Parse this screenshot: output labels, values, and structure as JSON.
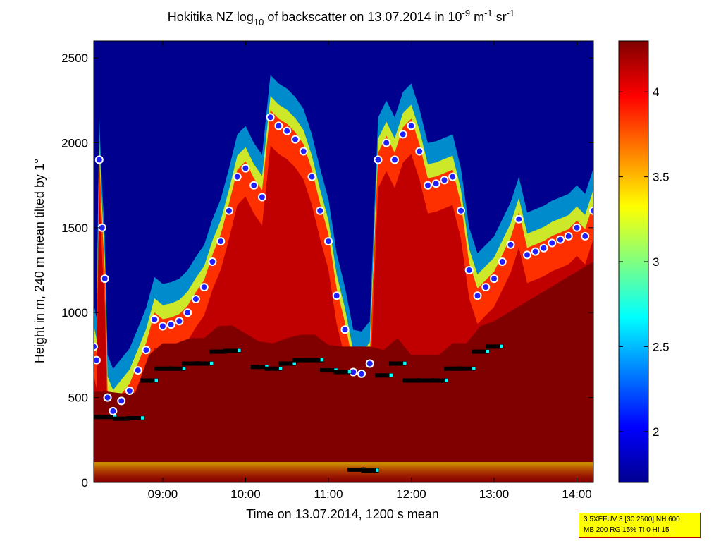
{
  "chart_data": {
    "type": "heatmap",
    "title": {
      "part1": "Hokitika NZ log",
      "sub": "10",
      "part2": " of backscatter on 13.07.2014 in 10",
      "sup1": "-9",
      "part3": " m",
      "sup2": "-1",
      "part4": " sr",
      "sup3": "-1"
    },
    "xlabel": "Time on 13.07.2014, 1200 s mean",
    "ylabel": "Height in m, 240 m mean tilted by 1°",
    "xlim": [
      "08:10",
      "14:12"
    ],
    "ylim": [
      0,
      2600
    ],
    "x_ticks": [
      "09:00",
      "10:00",
      "11:00",
      "12:00",
      "13:00",
      "14:00"
    ],
    "y_ticks": [
      0,
      500,
      1000,
      1500,
      2000,
      2500
    ],
    "colorbar": {
      "range": [
        1.7,
        4.3
      ],
      "ticks": [
        "2",
        "2.5",
        "3",
        "3.5",
        "4"
      ],
      "colormap": "jet"
    },
    "colors": {
      "background_low": "#00008f",
      "saturated_high": "#800000"
    },
    "series": [
      {
        "marker": "blue-dot-white-ring",
        "points": [
          [
            "08:10",
            800
          ],
          [
            "08:12",
            720
          ],
          [
            "08:14",
            1900
          ],
          [
            "08:16",
            1500
          ],
          [
            "08:18",
            1200
          ],
          [
            "08:20",
            500
          ],
          [
            "08:24",
            420
          ],
          [
            "08:30",
            480
          ],
          [
            "08:36",
            540
          ],
          [
            "08:42",
            660
          ],
          [
            "08:48",
            780
          ],
          [
            "08:54",
            960
          ],
          [
            "09:00",
            920
          ],
          [
            "09:06",
            930
          ],
          [
            "09:12",
            950
          ],
          [
            "09:18",
            1000
          ],
          [
            "09:24",
            1080
          ],
          [
            "09:30",
            1150
          ],
          [
            "09:36",
            1300
          ],
          [
            "09:42",
            1420
          ],
          [
            "09:48",
            1600
          ],
          [
            "09:54",
            1800
          ],
          [
            "10:00",
            1850
          ],
          [
            "10:06",
            1750
          ],
          [
            "10:12",
            1680
          ],
          [
            "10:18",
            2150
          ],
          [
            "10:24",
            2100
          ],
          [
            "10:30",
            2070
          ],
          [
            "10:36",
            2020
          ],
          [
            "10:42",
            1950
          ],
          [
            "10:48",
            1800
          ],
          [
            "10:54",
            1600
          ],
          [
            "11:00",
            1420
          ],
          [
            "11:06",
            1100
          ],
          [
            "11:12",
            900
          ],
          [
            "11:18",
            650
          ],
          [
            "11:24",
            640
          ],
          [
            "11:30",
            700
          ],
          [
            "11:36",
            1900
          ],
          [
            "11:42",
            2000
          ],
          [
            "11:48",
            1900
          ],
          [
            "11:54",
            2050
          ],
          [
            "12:00",
            2100
          ],
          [
            "12:06",
            1950
          ],
          [
            "12:12",
            1750
          ],
          [
            "12:18",
            1760
          ],
          [
            "12:24",
            1780
          ],
          [
            "12:30",
            1800
          ],
          [
            "12:36",
            1600
          ],
          [
            "12:42",
            1250
          ],
          [
            "12:48",
            1100
          ],
          [
            "12:54",
            1150
          ],
          [
            "13:00",
            1200
          ],
          [
            "13:06",
            1300
          ],
          [
            "13:12",
            1400
          ],
          [
            "13:18",
            1550
          ],
          [
            "13:24",
            1340
          ],
          [
            "13:30",
            1360
          ],
          [
            "13:36",
            1380
          ],
          [
            "13:42",
            1410
          ],
          [
            "13:48",
            1430
          ],
          [
            "13:54",
            1450
          ],
          [
            "14:00",
            1500
          ],
          [
            "14:06",
            1450
          ],
          [
            "14:12",
            1600
          ]
        ]
      },
      {
        "marker": "black-cyan-squares",
        "points": [
          [
            "08:10",
            385
          ],
          [
            "08:20",
            385
          ],
          [
            "08:30",
            375
          ],
          [
            "08:40",
            378
          ],
          [
            "08:50",
            600
          ],
          [
            "09:00",
            670
          ],
          [
            "09:10",
            670
          ],
          [
            "09:20",
            700
          ],
          [
            "09:30",
            700
          ],
          [
            "09:40",
            770
          ],
          [
            "09:50",
            775
          ],
          [
            "10:10",
            680
          ],
          [
            "10:20",
            670
          ],
          [
            "10:30",
            700
          ],
          [
            "10:40",
            720
          ],
          [
            "10:50",
            720
          ],
          [
            "11:00",
            660
          ],
          [
            "11:10",
            650
          ],
          [
            "11:20",
            75
          ],
          [
            "11:30",
            70
          ],
          [
            "11:40",
            630
          ],
          [
            "11:50",
            700
          ],
          [
            "12:00",
            600
          ],
          [
            "12:10",
            600
          ],
          [
            "12:20",
            600
          ],
          [
            "12:30",
            670
          ],
          [
            "12:40",
            670
          ],
          [
            "12:50",
            770
          ],
          [
            "13:00",
            800
          ]
        ]
      }
    ],
    "annotation": {
      "line1": "3.5XEFUV 3 [30 2500] NH 600",
      "line2": "MB 200 RG 15% TI 0 HI 15"
    }
  }
}
